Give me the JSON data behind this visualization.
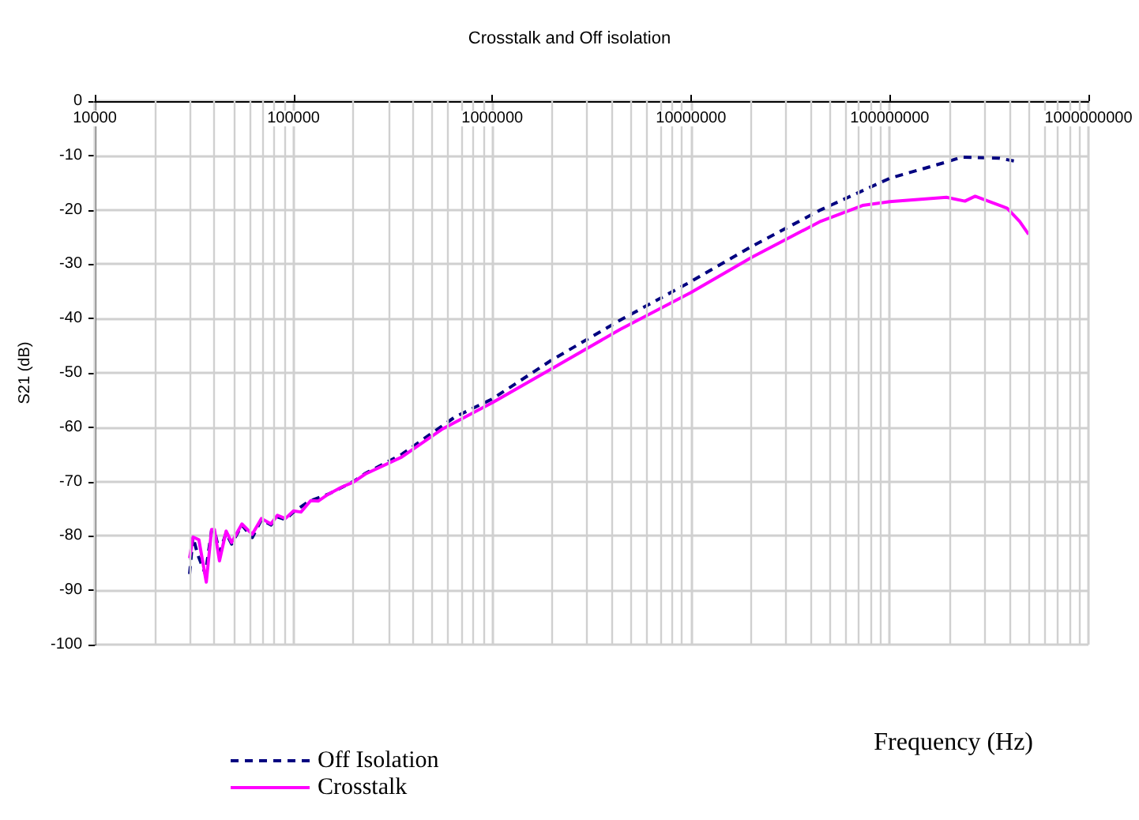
{
  "chart_data": {
    "type": "line",
    "title": "Crosstalk and Off isolation",
    "xlabel": "Frequency (Hz)",
    "ylabel": "S21 (dB)",
    "log": "x",
    "xlim": [
      10000,
      1000000000
    ],
    "xticks": [
      10000,
      100000,
      1000000,
      10000000,
      100000000,
      1000000000
    ],
    "ylim": [
      -100,
      0
    ],
    "yticks": [
      -100,
      -90,
      -80,
      -70,
      -60,
      -50,
      -40,
      -30,
      -20,
      -10,
      0
    ],
    "grid": true,
    "legend": "bottom left",
    "marker": "none",
    "series": [
      {
        "name": "Off Isolation",
        "color": "#000080",
        "line_style": "dashed",
        "x": [
          30000,
          31200,
          33000,
          36000,
          38700,
          40000,
          42400,
          45800,
          48800,
          55000,
          62000,
          69000,
          77000,
          83000,
          91000,
          100000,
          120000,
          150000,
          200000,
          230000,
          350000,
          650000,
          1000000,
          2000000,
          4400000,
          10000000,
          20300000,
          45000000,
          100000000,
          193000000,
          230000000,
          355000000,
          450000000
        ],
        "values": [
          -87.0,
          -80.2,
          -83.5,
          -87.0,
          -79.0,
          -79.0,
          -83.0,
          -79.5,
          -81.5,
          -78.0,
          -80.3,
          -77.0,
          -78.0,
          -76.5,
          -77.0,
          -75.6,
          -73.6,
          -72.3,
          -70.0,
          -68.5,
          -65.0,
          -58.1,
          -54.8,
          -47.6,
          -40.3,
          -33.2,
          -26.7,
          -20.0,
          -14.2,
          -11.2,
          -10.3,
          -10.5,
          -11.2
        ]
      },
      {
        "name": "Crosstalk",
        "color": "#ff00ff",
        "line_style": "solid",
        "x": [
          30000,
          31200,
          33400,
          36400,
          38700,
          40000,
          42400,
          45800,
          48800,
          55000,
          62000,
          69000,
          77000,
          83000,
          91000,
          100000,
          109000,
          122000,
          133000,
          150000,
          175000,
          200000,
          230000,
          350000,
          557000,
          1000000,
          2000000,
          4400000,
          10000000,
          20300000,
          45000000,
          73000000,
          100000000,
          193000000,
          239000000,
          269000000,
          390000000,
          450000000,
          500000000
        ],
        "values": [
          -84.1,
          -80.2,
          -80.7,
          -88.5,
          -78.8,
          -78.8,
          -84.6,
          -79.1,
          -81.2,
          -77.8,
          -79.7,
          -76.8,
          -77.8,
          -76.2,
          -76.8,
          -75.4,
          -75.6,
          -73.5,
          -73.6,
          -72.3,
          -71.0,
          -70.1,
          -68.6,
          -65.5,
          -60.4,
          -55.5,
          -49.2,
          -42.0,
          -35.2,
          -28.7,
          -22.1,
          -19.2,
          -18.5,
          -17.7,
          -18.4,
          -17.5,
          -19.7,
          -22.1,
          -24.5
        ]
      }
    ]
  }
}
